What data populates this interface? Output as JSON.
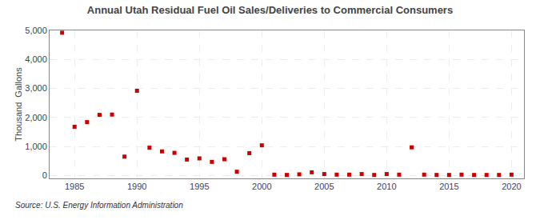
{
  "chart_data": {
    "type": "scatter",
    "title": "Annual Utah Residual Fuel Oil Sales/Deliveries to Commercial Consumers",
    "ylabel": "Thousand  Gallons",
    "annotations": [
      "Source: U.S. Energy Information Administration"
    ],
    "x": [
      1984,
      1985,
      1986,
      1987,
      1988,
      1989,
      1990,
      1991,
      1992,
      1993,
      1994,
      1995,
      1996,
      1997,
      1998,
      1999,
      2000,
      2001,
      2002,
      2003,
      2004,
      2005,
      2006,
      2007,
      2008,
      2009,
      2010,
      2011,
      2012,
      2013,
      2014,
      2015,
      2016,
      2017,
      2018,
      2019,
      2020
    ],
    "values": [
      4920,
      1680,
      1840,
      2090,
      2100,
      650,
      2920,
      960,
      830,
      780,
      550,
      590,
      470,
      560,
      130,
      770,
      1040,
      30,
      20,
      40,
      110,
      50,
      30,
      30,
      50,
      20,
      50,
      30,
      970,
      30,
      20,
      20,
      30,
      20,
      20,
      20,
      30
    ],
    "color": "#cc0000",
    "marker": "square",
    "xlim": [
      1983,
      2021
    ],
    "ylim": [
      -100,
      5000
    ],
    "xticks": [
      1985,
      1990,
      1995,
      2000,
      2005,
      2010,
      2015,
      2020
    ],
    "yticks": [
      0,
      {
        "value": 1000,
        "label": "1,000"
      },
      {
        "value": 2000,
        "label": "2,000"
      },
      {
        "value": 3000,
        "label": "3,000"
      },
      {
        "value": 4000,
        "label": "4,000"
      },
      {
        "value": 5000,
        "label": "5,000"
      }
    ],
    "grid": true
  }
}
